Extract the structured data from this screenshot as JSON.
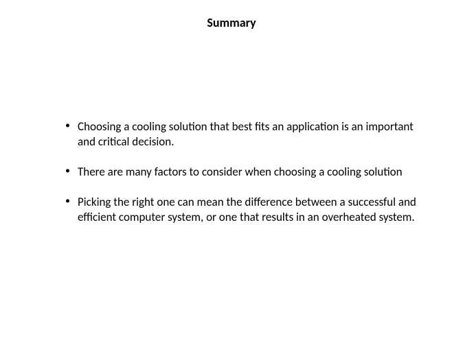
{
  "slide": {
    "title": "Summary",
    "title_fontsize": 18,
    "title_weight": "bold",
    "bullets": [
      "Choosing a cooling solution that best fits an application is an important and critical decision.",
      "There are many factors to consider when choosing a cooling solution",
      "Picking the right one can mean the difference between a successful and efficient computer system, or one that results in an overheated system."
    ],
    "bullet_fontsize": 17,
    "background_color": "#ffffff",
    "text_color": "#000000",
    "font_family": "Calibri, Arial, sans-serif"
  }
}
